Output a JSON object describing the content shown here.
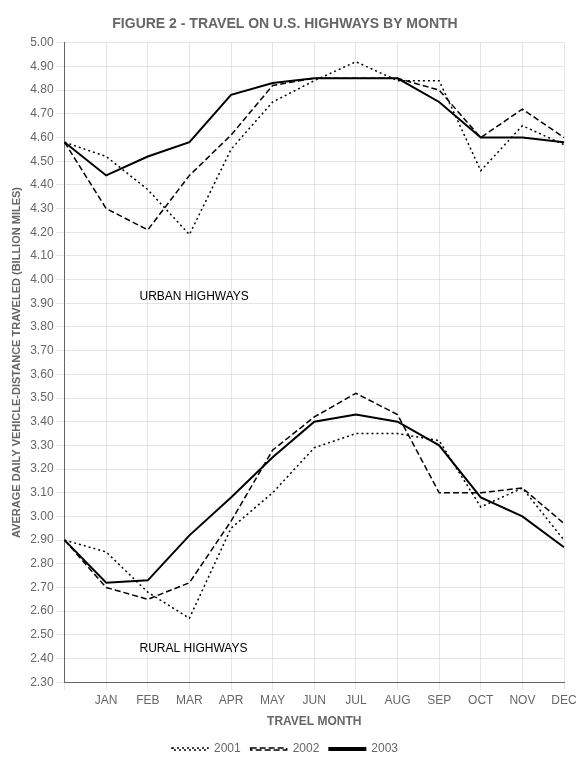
{
  "chart_data": {
    "type": "line",
    "title": "FIGURE 2 - TRAVEL ON U.S. HIGHWAYS BY MONTH",
    "xlabel": "TRAVEL MONTH",
    "ylabel": "AVERAGE DAILY VEHICLE-DISTANCE TRAVELED (BILLION MILES)",
    "categories": [
      null,
      "JAN",
      "FEB",
      "MAR",
      "APR",
      "MAY",
      "JUN",
      "JUL",
      "AUG",
      "SEP",
      "OCT",
      "NOV",
      "DEC"
    ],
    "series": [
      {
        "name": "2001",
        "color": "#000000",
        "line_style": "dotted",
        "values": [
          4.58,
          4.52,
          4.38,
          4.19,
          4.55,
          4.75,
          4.84,
          4.92,
          4.84,
          4.84,
          4.46,
          4.65,
          4.57
        ]
      },
      {
        "name": "2002",
        "color": "#000000",
        "line_style": "dashed",
        "values": [
          4.58,
          4.3,
          4.21,
          4.44,
          4.61,
          4.82,
          4.85,
          4.85,
          4.85,
          4.8,
          4.6,
          4.72,
          4.6
        ]
      },
      {
        "name": "2003",
        "color": "#000000",
        "line_style": "solid",
        "values": [
          4.58,
          4.44,
          4.52,
          4.58,
          4.78,
          4.83,
          4.85,
          4.85,
          4.85,
          4.75,
          4.6,
          4.6,
          4.58
        ]
      },
      {
        "name": "2001",
        "color": "#000000",
        "line_style": "dotted",
        "values": [
          2.9,
          2.85,
          2.68,
          2.57,
          2.95,
          3.1,
          3.29,
          3.35,
          3.35,
          3.32,
          3.04,
          3.12,
          2.9
        ]
      },
      {
        "name": "2002",
        "color": "#000000",
        "line_style": "dashed",
        "values": [
          2.9,
          2.7,
          2.65,
          2.72,
          2.98,
          3.28,
          3.42,
          3.52,
          3.43,
          3.1,
          3.1,
          3.12,
          2.97
        ]
      },
      {
        "name": "2003",
        "color": "#000000",
        "line_style": "solid",
        "values": [
          2.9,
          2.72,
          2.73,
          2.92,
          3.08,
          3.25,
          3.4,
          3.43,
          3.4,
          3.3,
          3.08,
          3.0,
          2.87
        ]
      }
    ],
    "ylim": [
      2.3,
      5.0
    ],
    "yticks": [
      {
        "value": 2.3,
        "label": "2.30"
      },
      {
        "value": 2.4,
        "label": "2.40"
      },
      {
        "value": 2.5,
        "label": "2.50"
      },
      {
        "value": 2.6,
        "label": "2.60"
      },
      {
        "value": 2.7,
        "label": "2.70"
      },
      {
        "value": 2.8,
        "label": "2.80"
      },
      {
        "value": 2.9,
        "label": "2.90"
      },
      {
        "value": 3.0,
        "label": "3.00"
      },
      {
        "value": 3.1,
        "label": "3.10"
      },
      {
        "value": 3.2,
        "label": "3.20"
      },
      {
        "value": 3.3,
        "label": "3.30"
      },
      {
        "value": 3.4,
        "label": "3.40"
      },
      {
        "value": 3.5,
        "label": "3.50"
      },
      {
        "value": 3.6,
        "label": "3.60"
      },
      {
        "value": 3.7,
        "label": "3.70"
      },
      {
        "value": 3.8,
        "label": "3.80"
      },
      {
        "value": 3.9,
        "label": "3.90"
      },
      {
        "value": 4.0,
        "label": "4.00"
      },
      {
        "value": 4.1,
        "label": "4.10"
      },
      {
        "value": 4.2,
        "label": "4.20"
      },
      {
        "value": 4.3,
        "label": "4.30"
      },
      {
        "value": 4.4,
        "label": "4.40"
      },
      {
        "value": 4.5,
        "label": "4.50"
      },
      {
        "value": 4.6,
        "label": "4.60"
      },
      {
        "value": 4.7,
        "label": "4.70"
      },
      {
        "value": 4.8,
        "label": "4.80"
      },
      {
        "value": 4.9,
        "label": "4.90"
      },
      {
        "value": 5.0,
        "label": "5.00"
      }
    ],
    "grid": true,
    "legend": "bottom",
    "annotations": [
      {
        "text": "URBAN HIGHWAYS",
        "x": 1.8,
        "y": 3.93
      },
      {
        "text": "RURAL HIGHWAYS",
        "x": 1.8,
        "y": 2.44
      }
    ]
  }
}
